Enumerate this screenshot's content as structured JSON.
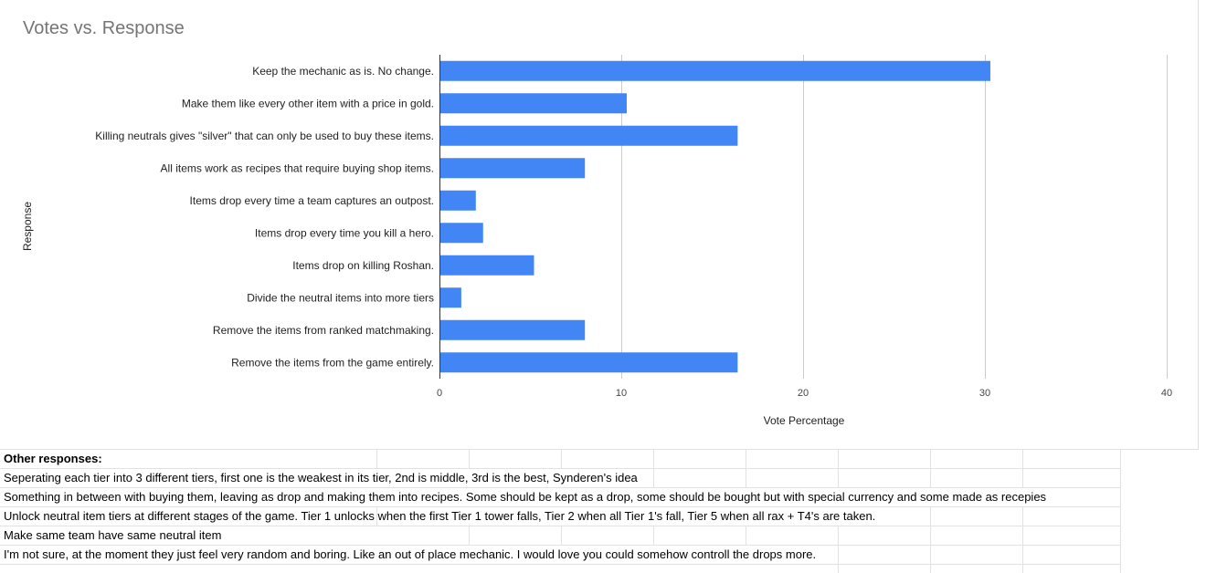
{
  "chart_data": {
    "type": "bar",
    "orientation": "horizontal",
    "title": "Votes vs. Response",
    "xlabel": "Vote Percentage",
    "ylabel": "Response",
    "xlim": [
      0,
      40
    ],
    "xticks": [
      0,
      10,
      20,
      30,
      40
    ],
    "grid": true,
    "bar_color": "#4285f4",
    "categories": [
      "Keep the mechanic as is. No change.",
      "Make them like every other item with a price in gold.",
      "Killing neutrals gives \"silver\" that can only be used to buy these items.",
      "All items work as recipes that require buying shop items.",
      "Items drop every time a team captures an outpost.",
      "Items drop every time you kill a hero.",
      "Items drop on killing Roshan.",
      "Divide the neutral items into more tiers",
      "Remove the items from ranked matchmaking.",
      "Remove the items from the game entirely."
    ],
    "values": [
      30.3,
      10.3,
      16.4,
      8.0,
      2.0,
      2.4,
      5.2,
      1.2,
      8.0,
      16.4
    ]
  },
  "sheet": {
    "header": "Other responses:",
    "rows": [
      "Seperating each tier into 3 different tiers, first one is the weakest in its tier, 2nd is middle, 3rd is the best, Synderen's idea",
      "Something in between with buying them, leaving as drop and making them into recipes. Some should be kept as a drop, some should be bought but with special currency and some made as recepies",
      "Unlock neutral item tiers at different stages of the game. Tier 1 unlocks when the first Tier 1 tower falls, Tier 2 when all Tier 1's fall, Tier 5 when all rax + T4's are taken.",
      "Make same team have same neutral item",
      "I'm not sure, at the moment they just feel very random and boring. Like an out of place mechanic. I would love you could somehow controll the drops more."
    ]
  }
}
